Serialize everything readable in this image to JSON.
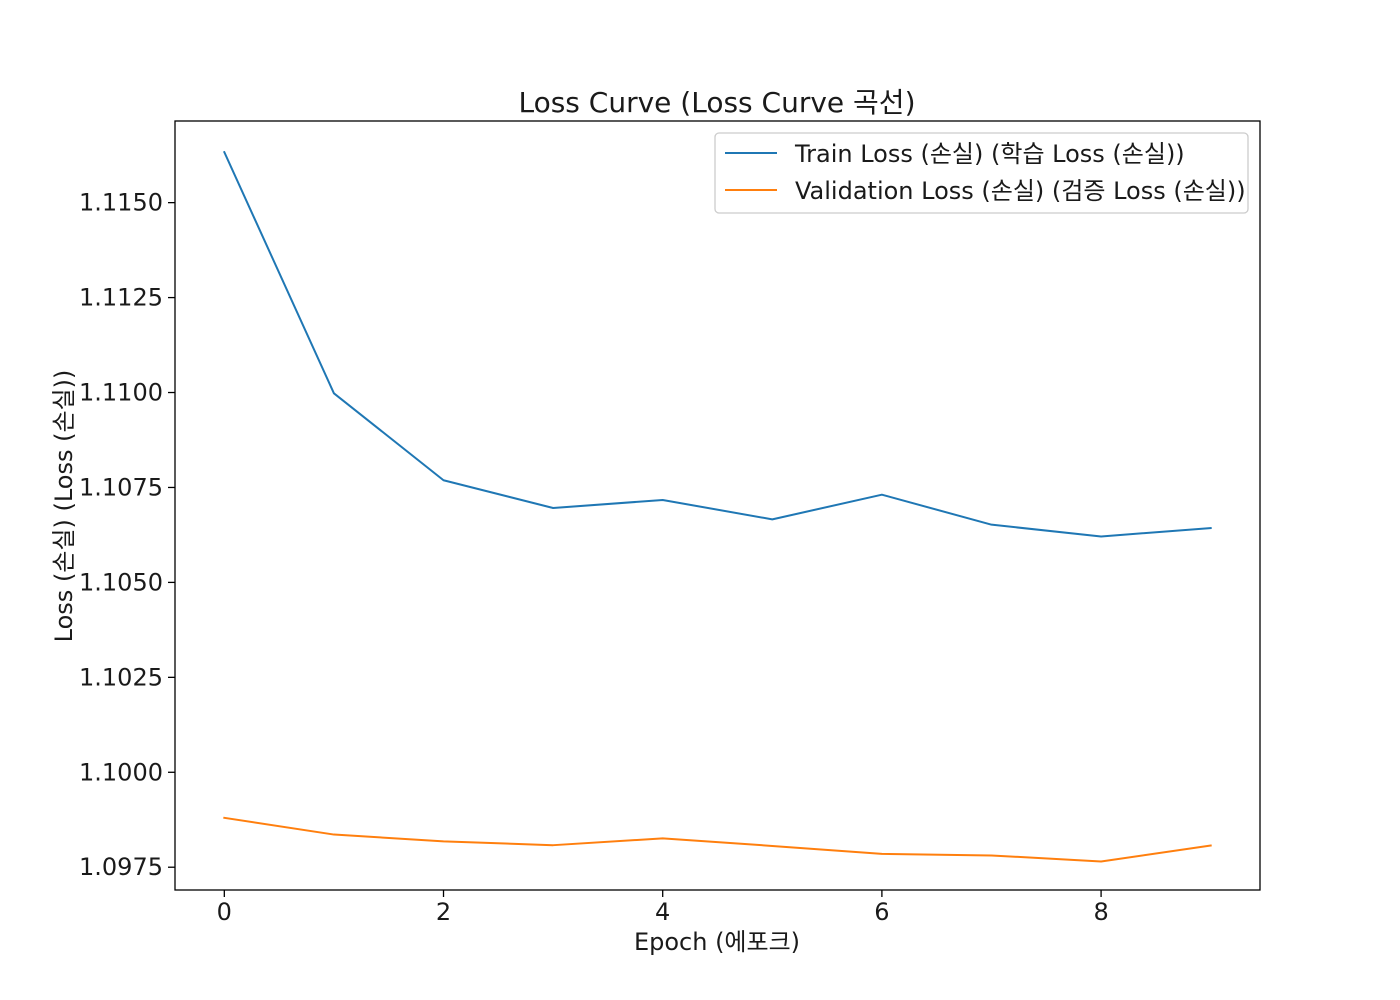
{
  "chart_data": {
    "type": "line",
    "title": "Loss Curve (Loss Curve 곡선)",
    "xlabel": "Epoch (에포크)",
    "ylabel": "Loss (손실) (Loss (손실))",
    "x": [
      0,
      1,
      2,
      3,
      4,
      5,
      6,
      7,
      8,
      9
    ],
    "xlim": [
      -0.45,
      9.45
    ],
    "ylim": [
      1.0969,
      1.11715
    ],
    "xticks": [
      0,
      2,
      4,
      6,
      8
    ],
    "xtick_labels": [
      "0",
      "2",
      "4",
      "6",
      "8"
    ],
    "yticks": [
      1.0975,
      1.1,
      1.1025,
      1.105,
      1.1075,
      1.11,
      1.1125,
      1.115
    ],
    "ytick_labels": [
      "1.0975",
      "1.1000",
      "1.1025",
      "1.1050",
      "1.1075",
      "1.1100",
      "1.1125",
      "1.1150"
    ],
    "grid": false,
    "legend_position": "top-right",
    "series": [
      {
        "name": "Train Loss (손실) (학습 Loss (손실))",
        "color": "#1f77b4",
        "values": [
          1.11633,
          1.10998,
          1.10769,
          1.10696,
          1.10717,
          1.10666,
          1.10731,
          1.10652,
          1.10621,
          1.10643
        ]
      },
      {
        "name": "Validation Loss (손실) (검증 Loss (손실))",
        "color": "#ff7f0e",
        "values": [
          1.0988,
          1.09836,
          1.09818,
          1.09808,
          1.09826,
          1.09806,
          1.09785,
          1.09781,
          1.09765,
          1.09807
        ]
      }
    ]
  }
}
